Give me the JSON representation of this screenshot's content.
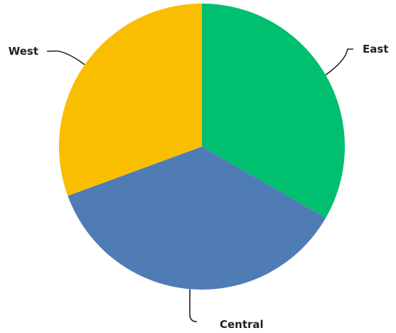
{
  "chart_data": {
    "type": "pie",
    "title": "",
    "slices": [
      {
        "label": "East",
        "value": 33.3,
        "color": "#00BF6F"
      },
      {
        "label": "Central",
        "value": 36.1,
        "color": "#507CB6"
      },
      {
        "label": "West",
        "value": 30.6,
        "color": "#F9BE00"
      }
    ],
    "start_angle_deg": 0,
    "direction": "clockwise",
    "legend": "none",
    "label_style": "outside-with-leader-lines"
  }
}
